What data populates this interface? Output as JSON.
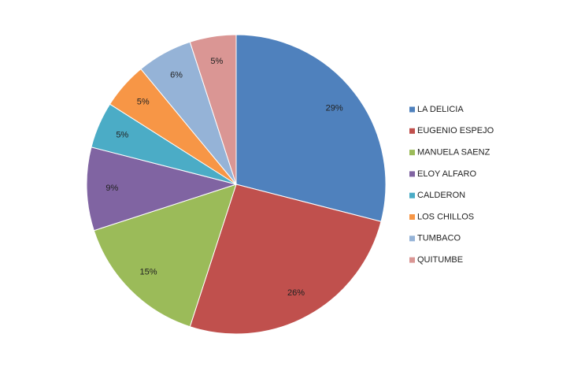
{
  "chart_data": {
    "type": "pie",
    "categories": [
      "LA DELICIA",
      "EUGENIO ESPEJO",
      "MANUELA SAENZ",
      "ELOY ALFARO",
      "CALDERON",
      "LOS CHILLOS",
      "TUMBACO",
      "QUITUMBE"
    ],
    "values": [
      29,
      26,
      15,
      9,
      5,
      5,
      6,
      5
    ],
    "value_labels": [
      "29%",
      "26%",
      "15%",
      "9%",
      "5%",
      "5%",
      "6%",
      "5%"
    ],
    "colors": [
      "#4f81bd",
      "#c0504d",
      "#9bbb59",
      "#8064a2",
      "#4bacc6",
      "#f79646",
      "#95b3d7",
      "#da9694"
    ],
    "legend": "right"
  }
}
